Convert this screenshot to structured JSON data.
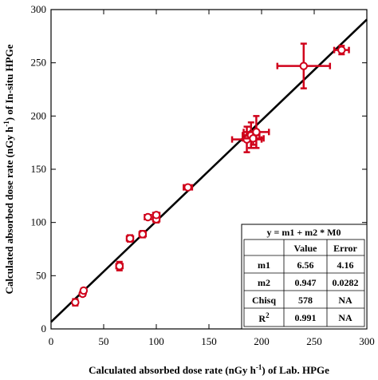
{
  "chart_data": {
    "type": "scatter",
    "xlabel": "Calculated absorbed dose rate (nGy h",
    "xlabel_sup": "-1",
    "xlabel_tail": ") of Lab. HPGe",
    "ylabel": "Calculated absorbed dose rate (nGy h",
    "ylabel_sup": "-1",
    "ylabel_tail": ") of In-situ HPGe",
    "xlim": [
      0,
      300
    ],
    "ylim": [
      0,
      300
    ],
    "x_ticks": [
      "0",
      "50",
      "100",
      "150",
      "200",
      "250",
      "300"
    ],
    "y_ticks": [
      "0",
      "50",
      "100",
      "150",
      "200",
      "250",
      "300"
    ],
    "grid": false,
    "points": [
      {
        "x": 23,
        "y": 25,
        "xerr": 2,
        "yerr": 3
      },
      {
        "x": 30,
        "y": 33,
        "xerr": 2,
        "yerr": 2
      },
      {
        "x": 31,
        "y": 36,
        "xerr": 2,
        "yerr": 2
      },
      {
        "x": 65,
        "y": 59,
        "xerr": 3,
        "yerr": 4
      },
      {
        "x": 75,
        "y": 85,
        "xerr": 3,
        "yerr": 3
      },
      {
        "x": 87,
        "y": 89,
        "xerr": 3,
        "yerr": 3
      },
      {
        "x": 92,
        "y": 105,
        "xerr": 3,
        "yerr": 2
      },
      {
        "x": 100,
        "y": 103,
        "xerr": 3,
        "yerr": 3
      },
      {
        "x": 100,
        "y": 107,
        "xerr": 3,
        "yerr": 2
      },
      {
        "x": 130,
        "y": 133,
        "xerr": 4,
        "yerr": 2
      },
      {
        "x": 186,
        "y": 178,
        "xerr": 14,
        "yerr": 12
      },
      {
        "x": 190,
        "y": 182,
        "xerr": 8,
        "yerr": 12
      },
      {
        "x": 192,
        "y": 179,
        "xerr": 10,
        "yerr": 6
      },
      {
        "x": 195,
        "y": 185,
        "xerr": 12,
        "yerr": 15
      },
      {
        "x": 240,
        "y": 247,
        "xerr": 25,
        "yerr": 21
      },
      {
        "x": 276,
        "y": 262,
        "xerr": 7,
        "yerr": 4
      }
    ],
    "fit": {
      "m1": 6.56,
      "m2": 0.947
    }
  },
  "fit_table": {
    "equation": "y = m1 + m2 * M0",
    "col_value": "Value",
    "col_error": "Error",
    "rows": [
      {
        "label": "m1",
        "value": "6.56",
        "error": "4.16"
      },
      {
        "label": "m2",
        "value": "0.947",
        "error": "0.0282"
      },
      {
        "label": "Chisq",
        "value": "578",
        "error": "NA"
      },
      {
        "label": "R",
        "label_sup": "2",
        "value": "0.991",
        "error": "NA"
      }
    ]
  },
  "colors": {
    "marker": "#d0021b",
    "fit_line": "#000000",
    "axes": "#000000"
  }
}
